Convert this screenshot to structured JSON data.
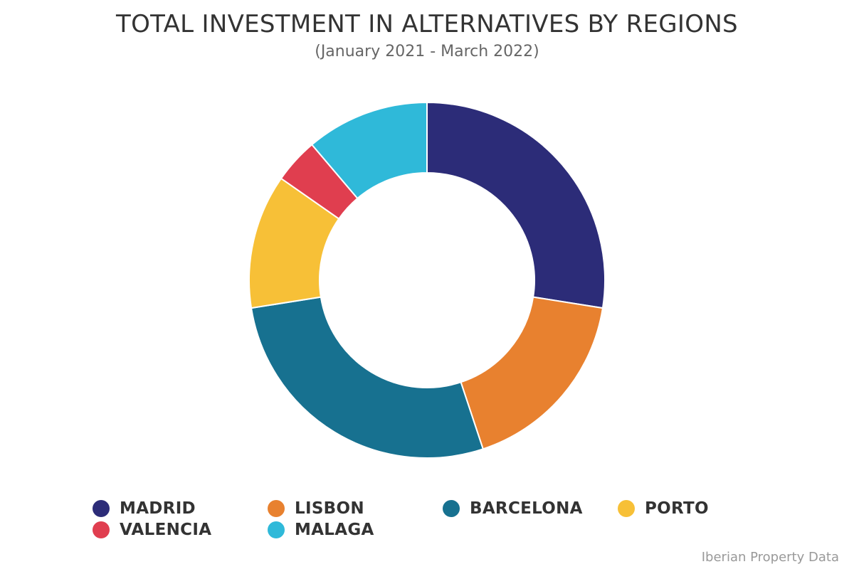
{
  "chart_data": {
    "type": "pie",
    "variant": "donut",
    "title": "TOTAL INVESTMENT IN ALTERNATIVES BY REGIONS",
    "subtitle": "(January 2021 - March 2022)",
    "categories": [
      "MADRID",
      "LISBON",
      "BARCELONA",
      "PORTO",
      "VALENCIA",
      "MALAGA"
    ],
    "values": [
      27.5,
      17.4,
      27.6,
      12.2,
      4.1,
      11.2
    ],
    "unit": "% share (estimated from slice angles)",
    "colors": [
      "#2c2c78",
      "#e8812f",
      "#177190",
      "#f7c037",
      "#e03e4f",
      "#2fb9d9"
    ],
    "start_angle_deg": 0,
    "direction": "clockwise",
    "legend_position": "bottom",
    "source_note": "Iberian Property Data"
  },
  "header": {
    "title": "TOTAL INVESTMENT IN ALTERNATIVES BY REGIONS",
    "subtitle": "(January 2021 - March 2022)"
  },
  "legend": {
    "items": [
      {
        "label": "MADRID",
        "color": "#2c2c78"
      },
      {
        "label": "LISBON",
        "color": "#e8812f"
      },
      {
        "label": "BARCELONA",
        "color": "#177190"
      },
      {
        "label": "PORTO",
        "color": "#f7c037"
      },
      {
        "label": "VALENCIA",
        "color": "#e03e4f"
      },
      {
        "label": "MALAGA",
        "color": "#2fb9d9"
      }
    ]
  },
  "footer": {
    "credit": "Iberian Property Data"
  }
}
